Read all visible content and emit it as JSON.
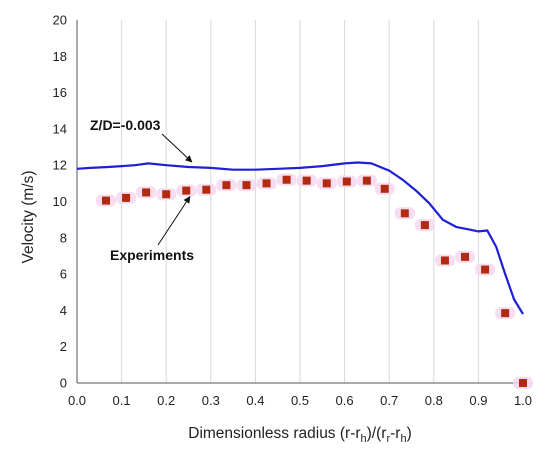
{
  "chart_data": {
    "type": "line",
    "xlabel": "Dimensionless radius (r-r",
    "xlabel_parts": [
      "Dimensionless radius (r-r",
      "h",
      ")/(r",
      "r",
      "-r",
      "h",
      ")"
    ],
    "ylabel": "Velocity (m/s)",
    "xlim": [
      0.0,
      1.0
    ],
    "ylim": [
      0,
      20
    ],
    "x_ticks": [
      "0.0",
      "0.1",
      "0.2",
      "0.3",
      "0.4",
      "0.5",
      "0.6",
      "0.7",
      "0.8",
      "0.9",
      "1.0"
    ],
    "y_ticks": [
      "0",
      "2",
      "4",
      "6",
      "8",
      "10",
      "12",
      "14",
      "16",
      "18",
      "20"
    ],
    "grid": "vertical",
    "annotations": [
      {
        "text": "Z/D=-0.003",
        "points_to": [
          0.28,
          11.9
        ]
      },
      {
        "text": "Experiments",
        "points_to": [
          0.28,
          10.6
        ]
      }
    ],
    "series": [
      {
        "kind": "line",
        "color": "#1f1fd6",
        "x": [
          0.0,
          0.03,
          0.07,
          0.1,
          0.13,
          0.16,
          0.2,
          0.25,
          0.3,
          0.35,
          0.4,
          0.45,
          0.5,
          0.55,
          0.6,
          0.63,
          0.66,
          0.7,
          0.73,
          0.76,
          0.79,
          0.82,
          0.85,
          0.88,
          0.9,
          0.92,
          0.94,
          0.96,
          0.98,
          1.0
        ],
        "y": [
          11.8,
          11.85,
          11.9,
          11.95,
          12.0,
          12.1,
          12.0,
          11.9,
          11.85,
          11.75,
          11.75,
          11.8,
          11.85,
          11.95,
          12.1,
          12.15,
          12.1,
          11.7,
          11.2,
          10.6,
          9.9,
          9.0,
          8.6,
          8.45,
          8.35,
          8.4,
          7.5,
          6.0,
          4.6,
          3.8
        ]
      },
      {
        "kind": "scatter",
        "color": "#b22a0f",
        "x": [
          0.065,
          0.11,
          0.155,
          0.2,
          0.245,
          0.29,
          0.335,
          0.38,
          0.425,
          0.47,
          0.515,
          0.56,
          0.605,
          0.65,
          0.69,
          0.735,
          0.78,
          0.825,
          0.87,
          0.915,
          0.96,
          1.0
        ],
        "y": [
          10.05,
          10.2,
          10.5,
          10.4,
          10.6,
          10.65,
          10.9,
          10.9,
          11.0,
          11.2,
          11.15,
          11.0,
          11.1,
          11.15,
          10.7,
          9.35,
          8.7,
          6.75,
          6.95,
          6.25,
          3.85,
          0.0
        ]
      }
    ]
  }
}
